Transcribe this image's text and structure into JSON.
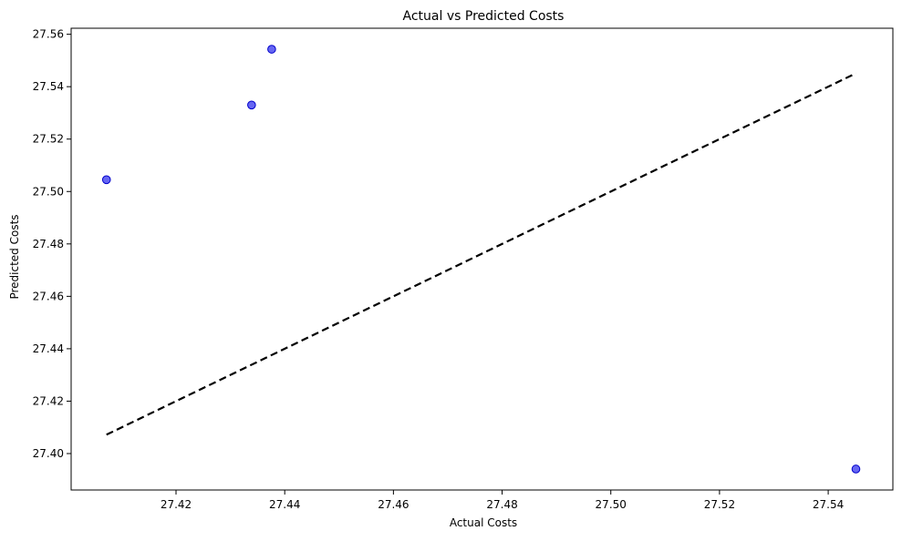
{
  "chart_data": {
    "type": "scatter",
    "title": "Actual vs Predicted Costs",
    "xlabel": "Actual Costs",
    "ylabel": "Predicted Costs",
    "xlim": [
      27.4007,
      27.5519
    ],
    "ylim": [
      27.3861,
      27.5623
    ],
    "x_ticks": [
      "27.42",
      "27.44",
      "27.46",
      "27.48",
      "27.50",
      "27.52",
      "27.54"
    ],
    "y_ticks": [
      "27.40",
      "27.42",
      "27.44",
      "27.46",
      "27.48",
      "27.50",
      "27.52",
      "27.54",
      "27.56"
    ],
    "grid": false,
    "legend": "none",
    "points": [
      {
        "x": 27.4072,
        "y": 27.5045
      },
      {
        "x": 27.4339,
        "y": 27.533
      },
      {
        "x": 27.4376,
        "y": 27.5543
      },
      {
        "x": 27.5451,
        "y": 27.3941
      }
    ],
    "reference_line": {
      "style": "dashed",
      "color": "#000000",
      "x": [
        27.4072,
        27.5451
      ],
      "y": [
        27.4072,
        27.5451
      ]
    },
    "point_color": "#3333ee",
    "point_edge_color": "#0000cc"
  }
}
